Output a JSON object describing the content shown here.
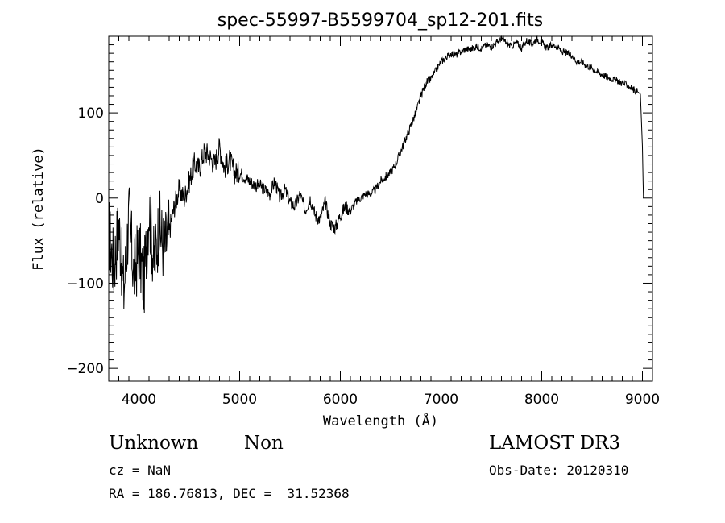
{
  "chart_data": {
    "type": "line",
    "title": "spec-55997-B5599704_sp12-201.fits",
    "xlabel": "Wavelength (Å)",
    "ylabel": "Flux (relative)",
    "xlim": [
      3700,
      9100
    ],
    "ylim": [
      -215,
      190
    ],
    "xticks": [
      4000,
      5000,
      6000,
      7000,
      8000,
      9000
    ],
    "yticks": [
      -200,
      -100,
      0,
      100
    ],
    "series": [
      {
        "name": "spectrum",
        "x": [
          3700,
          3750,
          3800,
          3850,
          3900,
          3950,
          4000,
          4050,
          4100,
          4150,
          4200,
          4250,
          4300,
          4350,
          4400,
          4450,
          4500,
          4550,
          4600,
          4650,
          4700,
          4750,
          4800,
          4850,
          4900,
          4950,
          5000,
          5050,
          5100,
          5150,
          5200,
          5250,
          5300,
          5350,
          5400,
          5450,
          5500,
          5550,
          5600,
          5650,
          5700,
          5750,
          5800,
          5850,
          5900,
          5950,
          6000,
          6050,
          6100,
          6150,
          6200,
          6250,
          6300,
          6350,
          6400,
          6450,
          6500,
          6550,
          6600,
          6650,
          6700,
          6750,
          6800,
          6850,
          6900,
          6950,
          7000,
          7050,
          7100,
          7150,
          7200,
          7250,
          7300,
          7350,
          7400,
          7450,
          7500,
          7550,
          7600,
          7650,
          7700,
          7750,
          7800,
          7850,
          7900,
          7950,
          8000,
          8050,
          8100,
          8150,
          8200,
          8250,
          8300,
          8350,
          8400,
          8450,
          8500,
          8550,
          8600,
          8650,
          8700,
          8750,
          8800,
          8850,
          8900,
          8950,
          8980,
          9000,
          9010
        ],
        "y": [
          -40,
          -80,
          -30,
          -110,
          -20,
          -90,
          -60,
          -100,
          -10,
          -80,
          -30,
          -60,
          -40,
          -10,
          10,
          0,
          20,
          40,
          35,
          55,
          50,
          40,
          60,
          35,
          45,
          30,
          30,
          25,
          20,
          15,
          15,
          10,
          5,
          20,
          0,
          10,
          -5,
          -10,
          5,
          -15,
          0,
          -20,
          -25,
          -5,
          -30,
          -35,
          -20,
          -10,
          -15,
          -5,
          0,
          5,
          5,
          10,
          20,
          25,
          30,
          40,
          55,
          70,
          85,
          100,
          120,
          135,
          140,
          150,
          160,
          165,
          170,
          168,
          172,
          175,
          175,
          178,
          176,
          180,
          178,
          182,
          188,
          182,
          178,
          183,
          176,
          185,
          180,
          187,
          183,
          176,
          180,
          178,
          172,
          170,
          168,
          160,
          160,
          155,
          153,
          148,
          145,
          142,
          140,
          138,
          135,
          133,
          128,
          125,
          122,
          60,
          0
        ]
      }
    ]
  },
  "footer": {
    "object_class": "Unknown",
    "subclass": "Non",
    "survey": "LAMOST DR3",
    "redshift": "cz = NaN",
    "obs_date": "Obs-Date: 20120310",
    "coordinates": "RA = 186.76813, DEC =  31.52368"
  }
}
